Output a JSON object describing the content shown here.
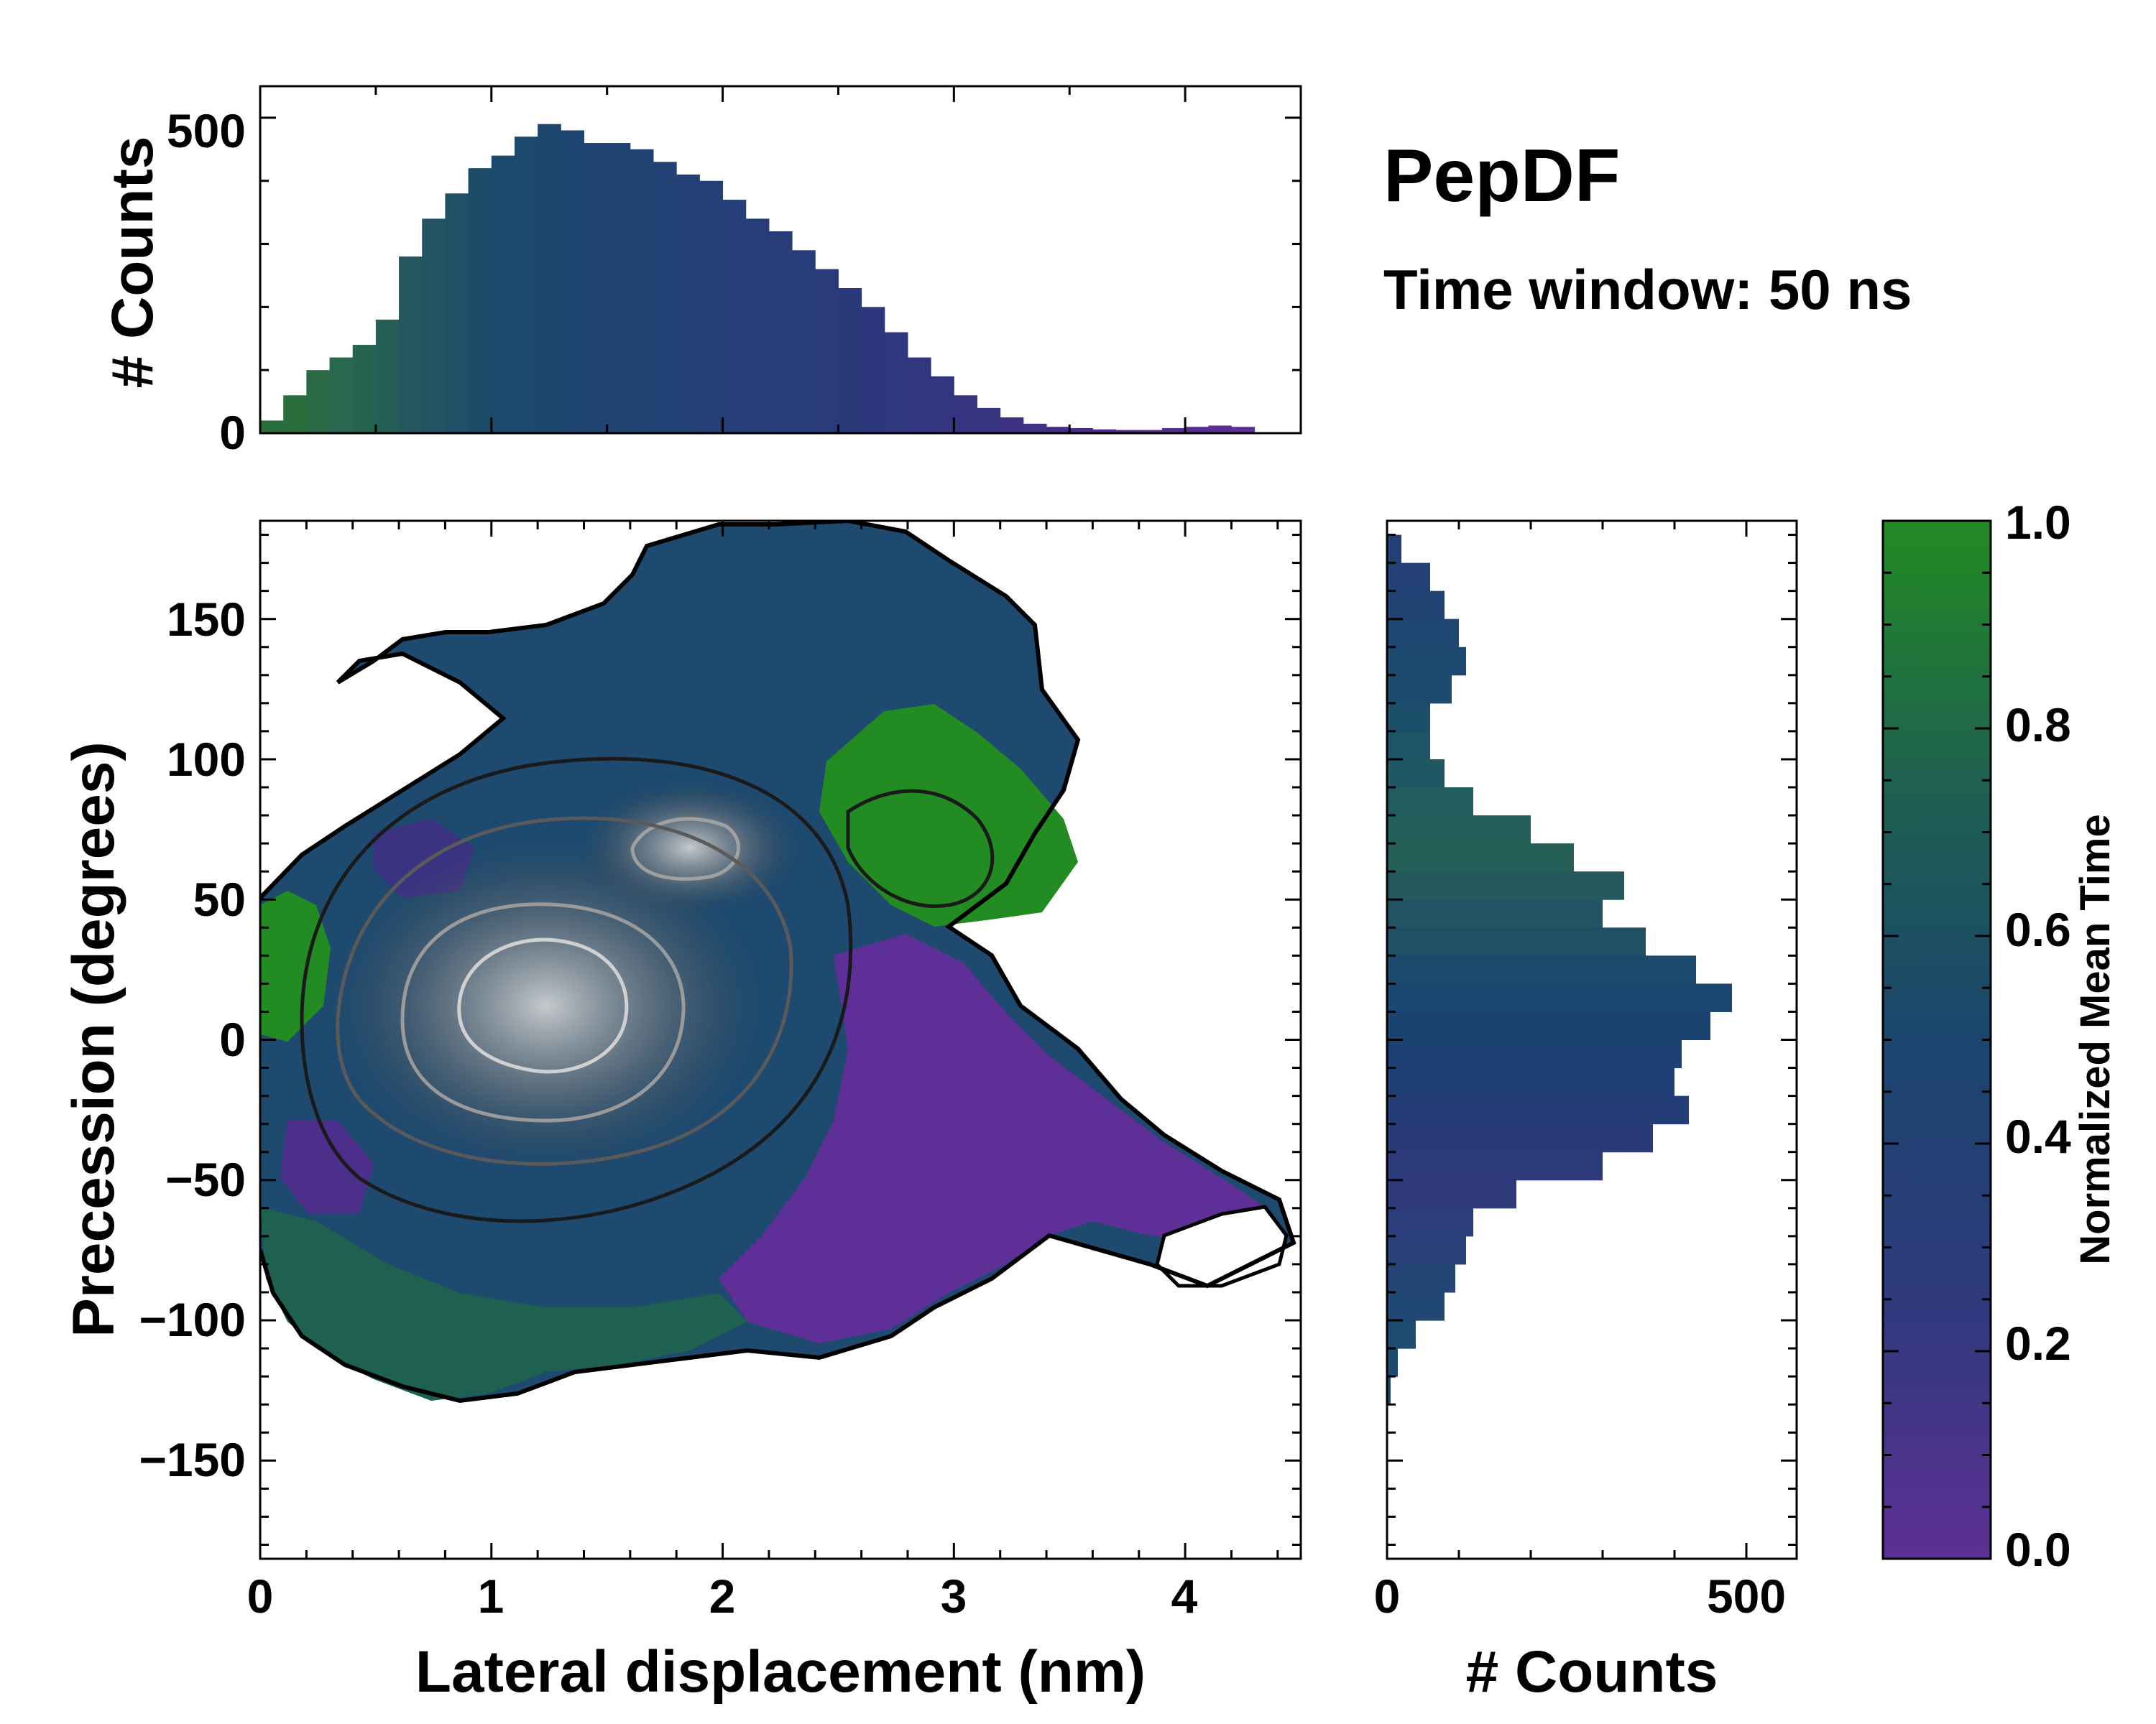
{
  "chart_data": {
    "type": "heatmap",
    "title": "PepDF",
    "subtitle": "Time window: 50 ns",
    "main": {
      "xlabel": "Lateral displacement (nm)",
      "ylabel": "Precession (degrees)",
      "xlim": [
        0,
        4.5
      ],
      "ylim": [
        -185,
        185
      ],
      "xticks": [
        0,
        1,
        2,
        3,
        4
      ],
      "xtick_labels": [
        "0",
        "1",
        "2",
        "3",
        "4"
      ],
      "yticks": [
        150,
        100,
        50,
        0,
        -50,
        -100,
        -150
      ],
      "ytick_labels": [
        "150",
        "100",
        "50",
        "0",
        "−50",
        "−100",
        "−150"
      ],
      "density_peak": {
        "x": 1.2,
        "y": 20
      },
      "contours": "black outer contour, grey inner density contours"
    },
    "top_histogram": {
      "type": "bar",
      "ylabel": "# Counts",
      "ylim": [
        0,
        550
      ],
      "yticks": [
        0,
        500
      ],
      "ytick_labels": [
        "0",
        "500"
      ],
      "x": [
        0.05,
        0.15,
        0.25,
        0.35,
        0.45,
        0.55,
        0.65,
        0.75,
        0.85,
        0.95,
        1.05,
        1.15,
        1.25,
        1.35,
        1.45,
        1.55,
        1.65,
        1.75,
        1.85,
        1.95,
        2.05,
        2.15,
        2.25,
        2.35,
        2.45,
        2.55,
        2.65,
        2.75,
        2.85,
        2.95,
        3.05,
        3.15,
        3.25,
        3.35,
        3.45,
        3.55,
        3.65,
        3.75,
        3.85,
        3.95,
        4.05,
        4.15,
        4.25
      ],
      "values": [
        20,
        60,
        100,
        120,
        140,
        180,
        280,
        340,
        380,
        420,
        440,
        470,
        490,
        480,
        460,
        460,
        450,
        430,
        410,
        400,
        370,
        340,
        320,
        290,
        260,
        230,
        200,
        160,
        120,
        90,
        60,
        40,
        25,
        15,
        10,
        8,
        6,
        5,
        5,
        8,
        10,
        12,
        10
      ],
      "colors": [
        "#2a6e3c",
        "#2a6e3c",
        "#2a6b46",
        "#29684e",
        "#286352",
        "#265e58",
        "#24585e",
        "#225463",
        "#1f5066",
        "#1d4c69",
        "#1c4a6c",
        "#1c486e",
        "#1d466f",
        "#1e4570",
        "#1f4471",
        "#204372",
        "#214273",
        "#224174",
        "#234075",
        "#243f76",
        "#253e77",
        "#263d78",
        "#273c79",
        "#283b7a",
        "#2a3a7b",
        "#2b397b",
        "#2d387c",
        "#2f377d",
        "#31367e",
        "#33357f",
        "#353480",
        "#383381",
        "#3b3282",
        "#3f3183",
        "#433085",
        "#472f87",
        "#4a2f89",
        "#4d2f8b",
        "#502f8d",
        "#532f8f",
        "#562f91",
        "#592f93",
        "#5c2f95"
      ]
    },
    "right_histogram": {
      "type": "bar",
      "orientation": "horizontal",
      "xlabel": "# Counts",
      "xlim": [
        0,
        570
      ],
      "xticks": [
        0,
        500
      ],
      "xtick_labels": [
        "0",
        "500"
      ],
      "y": [
        175,
        165,
        155,
        145,
        135,
        125,
        115,
        105,
        95,
        85,
        75,
        65,
        55,
        45,
        35,
        25,
        15,
        5,
        -5,
        -15,
        -25,
        -35,
        -45,
        -55,
        -65,
        -75,
        -85,
        -95,
        -105,
        -115,
        -125
      ],
      "values": [
        20,
        60,
        80,
        100,
        110,
        90,
        60,
        60,
        80,
        120,
        200,
        260,
        330,
        300,
        360,
        430,
        480,
        450,
        410,
        400,
        420,
        370,
        300,
        180,
        120,
        110,
        95,
        80,
        40,
        15,
        5
      ],
      "colors": [
        "#243f76",
        "#234175",
        "#214373",
        "#1f4571",
        "#1d486f",
        "#1c4b6d",
        "#1c4f6a",
        "#1d5466",
        "#1f5862",
        "#225c5e",
        "#24605a",
        "#265e58",
        "#24595d",
        "#225463",
        "#1f5066",
        "#1c4a6c",
        "#1a466f",
        "#1b4370",
        "#1d4172",
        "#203f74",
        "#243d76",
        "#283b78",
        "#2c3a7a",
        "#2f3a7b",
        "#2b3d7a",
        "#284178",
        "#244575",
        "#214873",
        "#1f4a71",
        "#1e4a70",
        "#1d4a6f"
      ]
    },
    "colorbar": {
      "label": "Normalized Mean Time",
      "range": [
        0.0,
        1.0
      ],
      "ticks": [
        1.0,
        0.8,
        0.6,
        0.4,
        0.2,
        0.0
      ],
      "tick_labels": [
        "1.0",
        "0.8",
        "0.6",
        "0.4",
        "0.2",
        "0.0"
      ],
      "colors": {
        "low": "#5e2f96",
        "mid_low": "#2e3a7c",
        "mid": "#1b456e",
        "mid_high": "#1f6150",
        "high": "#228b22"
      }
    }
  }
}
